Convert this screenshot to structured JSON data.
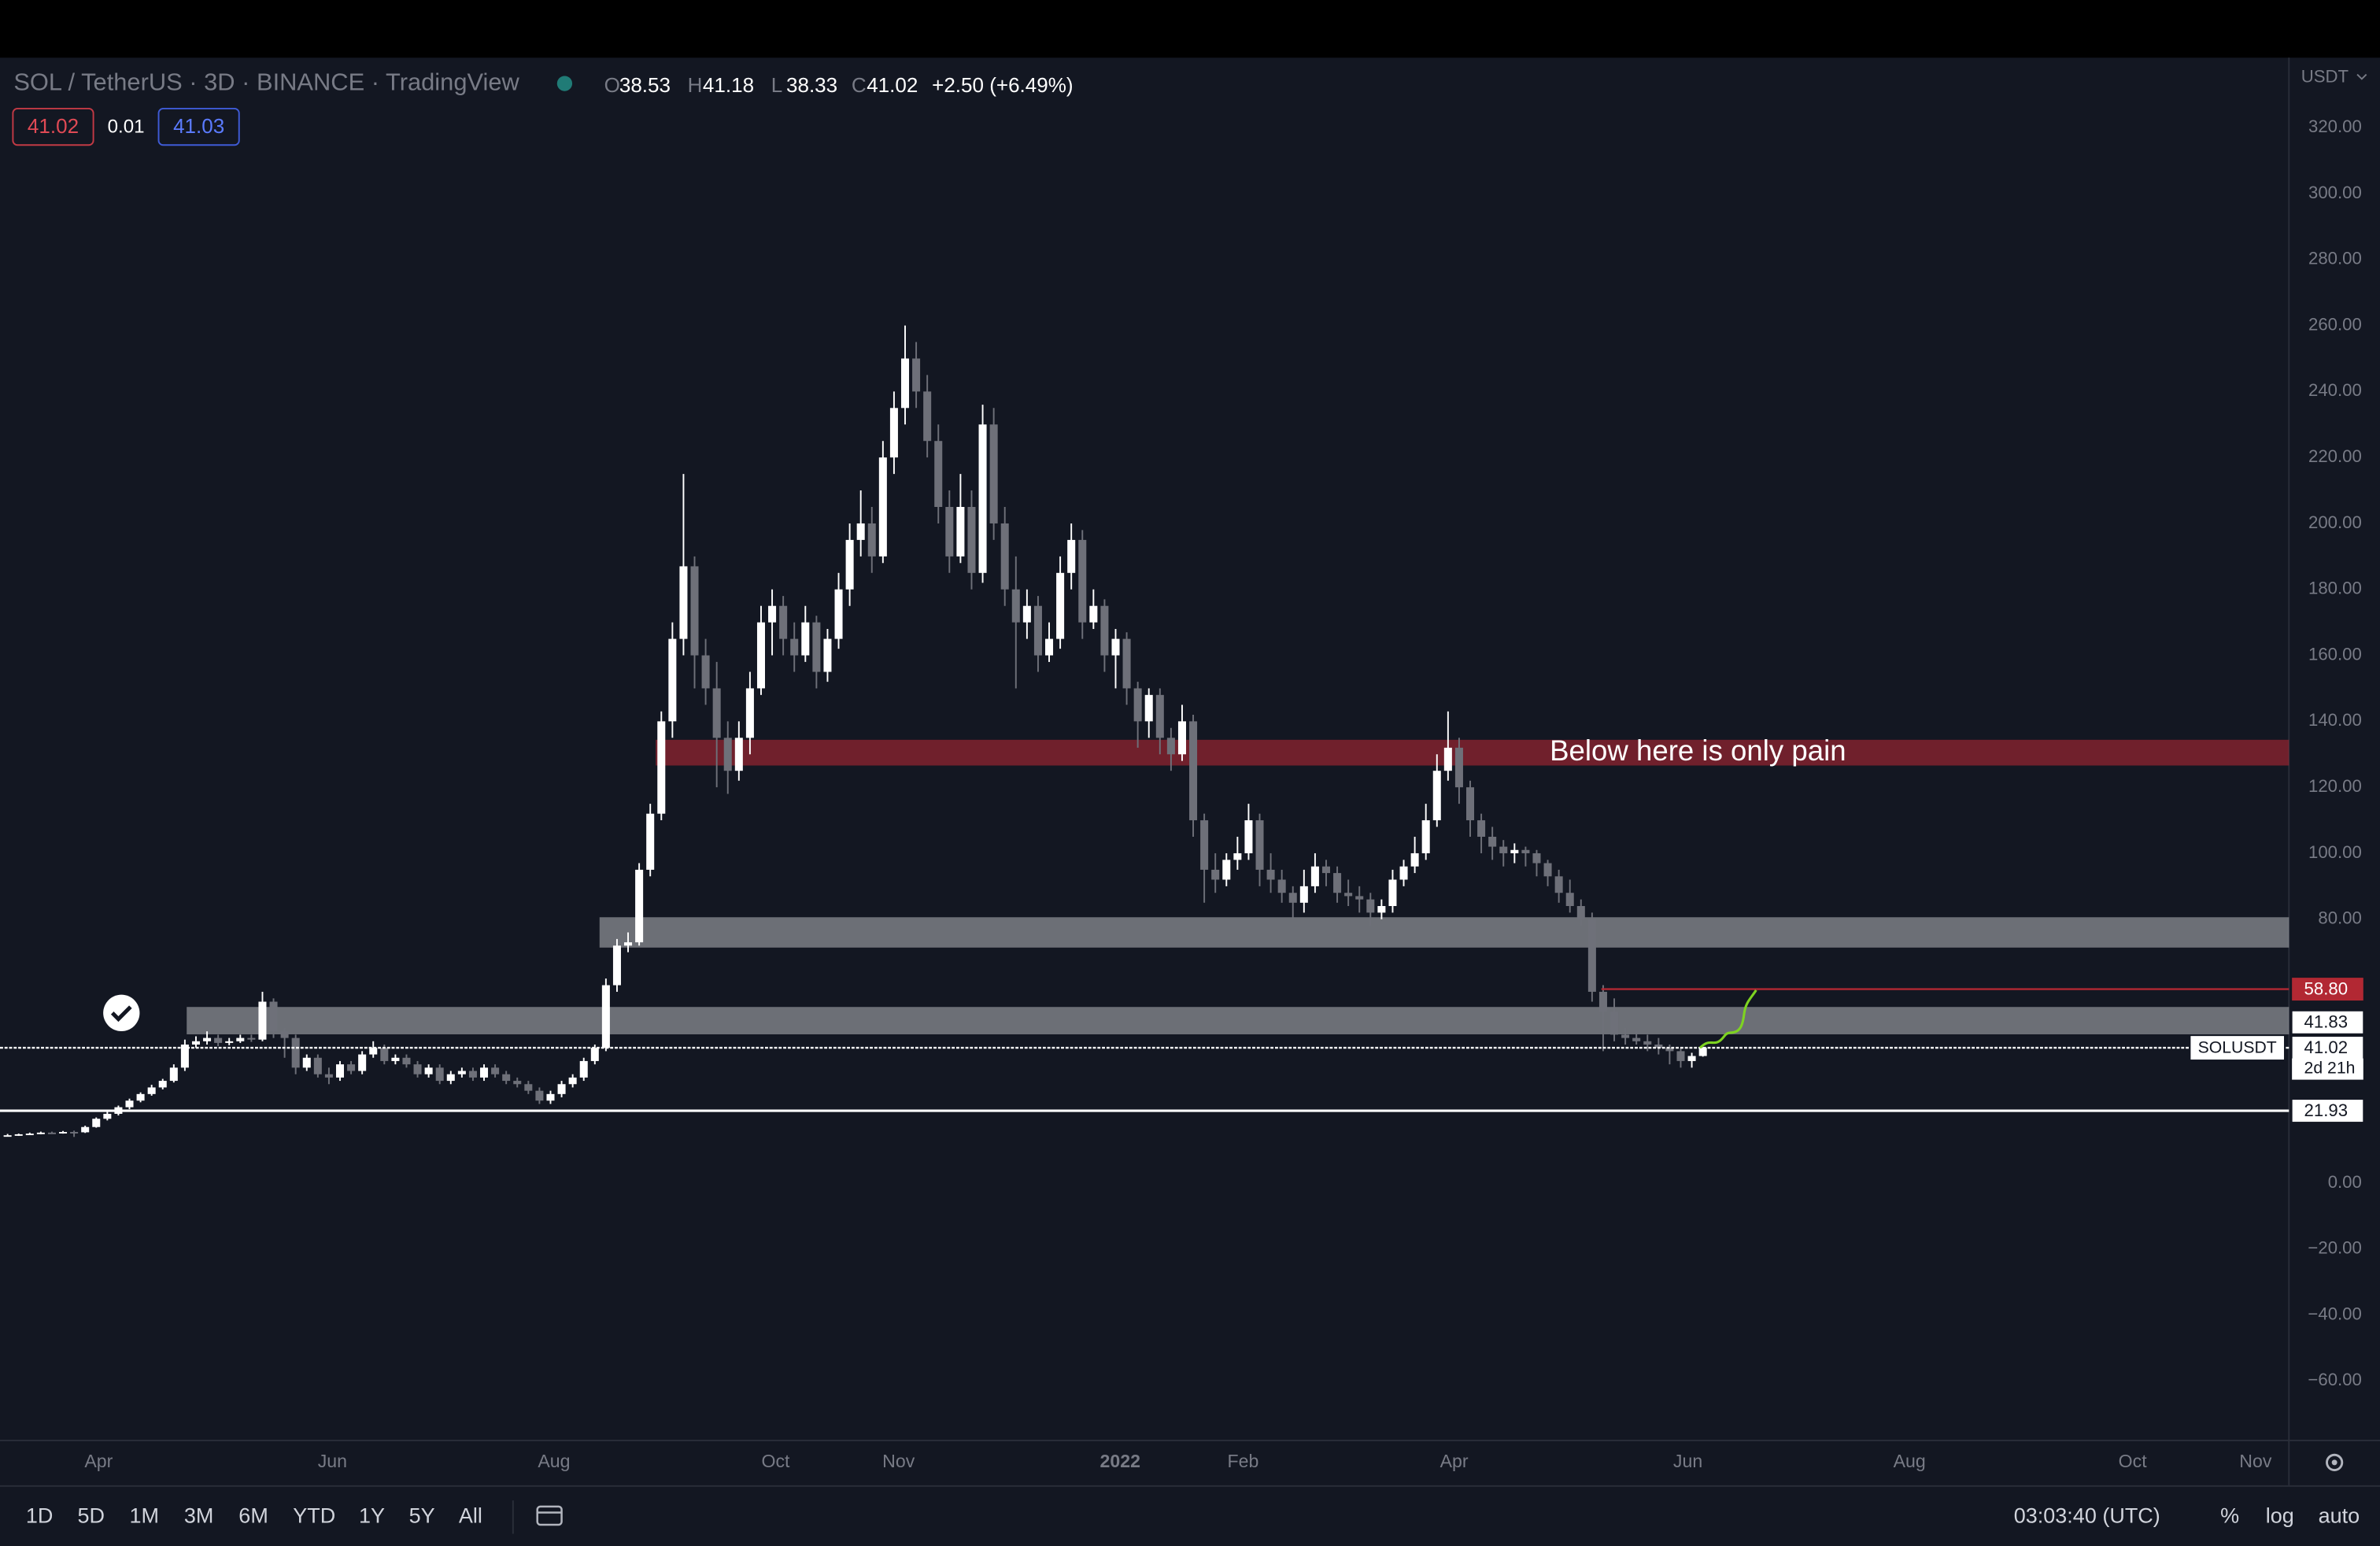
{
  "chart_data": {
    "type": "candlestick",
    "title": "SOL / TetherUS · 3D · BINANCE · TradingView",
    "ohlc_legend": [
      {
        "key": "O",
        "value": "38.53"
      },
      {
        "key": "H",
        "value": "41.18"
      },
      {
        "key": "L",
        "value": "38.33"
      },
      {
        "key": "C",
        "value": "41.02"
      }
    ],
    "change": "+2.50 (+6.49%)",
    "quote": {
      "bid": "41.02",
      "spread": "0.01",
      "ask": "41.03"
    },
    "currency": "USDT",
    "up_color": "#ffffff",
    "down_color": "#6e7079",
    "candles": [
      [
        14.3,
        14.9,
        14.1,
        14.5
      ],
      [
        14.5,
        15.0,
        14.3,
        14.8
      ],
      [
        14.8,
        15.3,
        14.6,
        15.0
      ],
      [
        15.0,
        15.6,
        14.8,
        15.3
      ],
      [
        15.3,
        15.6,
        14.9,
        15.2
      ],
      [
        15.2,
        15.8,
        15.0,
        15.5
      ],
      [
        15.5,
        15.9,
        14.0,
        15.4
      ],
      [
        15.4,
        17.4,
        15.2,
        17
      ],
      [
        17,
        19.9,
        16.8,
        19.5
      ],
      [
        19.5,
        21.6,
        19,
        21
      ],
      [
        21,
        23.5,
        20.5,
        23
      ],
      [
        23,
        25.6,
        22.4,
        25
      ],
      [
        25,
        27.5,
        24.5,
        27
      ],
      [
        27,
        29.8,
        26.5,
        29
      ],
      [
        29,
        31.6,
        28.4,
        31
      ],
      [
        31,
        36,
        30.5,
        35
      ],
      [
        35,
        43.5,
        34,
        42
      ],
      [
        42,
        44.5,
        41,
        43
      ],
      [
        43,
        46,
        42,
        44
      ],
      [
        44,
        45,
        41.5,
        42.5
      ],
      [
        42.5,
        44,
        41.8,
        43
      ],
      [
        43,
        45,
        42.5,
        44
      ],
      [
        44,
        45,
        42.8,
        43.5
      ],
      [
        43.5,
        58,
        43,
        55
      ],
      [
        55,
        56,
        44,
        46
      ],
      [
        46,
        47,
        38,
        44
      ],
      [
        44,
        45,
        33,
        35
      ],
      [
        35,
        39,
        34,
        38
      ],
      [
        38,
        39,
        32,
        33
      ],
      [
        33,
        35,
        30,
        32
      ],
      [
        32,
        37,
        31,
        36
      ],
      [
        36,
        37,
        33,
        34
      ],
      [
        34,
        40,
        33,
        39
      ],
      [
        39,
        43,
        38,
        41
      ],
      [
        41,
        42,
        36,
        37
      ],
      [
        37,
        39,
        36,
        38
      ],
      [
        38,
        39,
        35,
        36
      ],
      [
        36,
        37,
        32,
        33
      ],
      [
        33,
        36,
        32,
        35
      ],
      [
        35,
        36,
        30,
        31
      ],
      [
        31,
        34,
        30,
        33
      ],
      [
        33,
        35,
        32,
        34
      ],
      [
        34,
        35,
        31,
        32
      ],
      [
        32,
        36,
        31,
        35
      ],
      [
        35,
        36,
        32,
        33
      ],
      [
        33,
        34,
        30,
        31
      ],
      [
        31,
        32,
        29,
        30
      ],
      [
        30,
        31,
        27,
        28
      ],
      [
        28,
        29,
        24,
        25
      ],
      [
        25,
        28,
        24,
        27
      ],
      [
        27,
        31,
        26,
        30
      ],
      [
        30,
        33,
        29,
        32
      ],
      [
        32,
        38,
        31,
        37
      ],
      [
        37,
        42,
        36,
        41
      ],
      [
        41,
        62,
        40,
        60
      ],
      [
        60,
        74,
        58,
        72
      ],
      [
        72,
        76,
        70,
        73
      ],
      [
        73,
        97,
        72,
        95
      ],
      [
        95,
        115,
        93,
        112
      ],
      [
        112,
        143,
        110,
        140
      ],
      [
        140,
        170,
        135,
        165
      ],
      [
        165,
        215,
        160,
        187
      ],
      [
        187,
        190,
        150,
        160
      ],
      [
        160,
        165,
        145,
        150
      ],
      [
        150,
        158,
        120,
        135
      ],
      [
        135,
        140,
        118,
        125
      ],
      [
        125,
        140,
        122,
        135
      ],
      [
        135,
        155,
        130,
        150
      ],
      [
        150,
        175,
        148,
        170
      ],
      [
        170,
        180,
        160,
        175
      ],
      [
        175,
        178,
        160,
        165
      ],
      [
        165,
        170,
        155,
        160
      ],
      [
        160,
        175,
        158,
        170
      ],
      [
        170,
        172,
        150,
        155
      ],
      [
        155,
        168,
        152,
        165
      ],
      [
        165,
        185,
        162,
        180
      ],
      [
        180,
        200,
        175,
        195
      ],
      [
        195,
        210,
        190,
        200
      ],
      [
        200,
        205,
        185,
        190
      ],
      [
        190,
        225,
        188,
        220
      ],
      [
        220,
        240,
        215,
        235
      ],
      [
        235,
        260,
        230,
        250
      ],
      [
        250,
        255,
        235,
        240
      ],
      [
        240,
        245,
        220,
        225
      ],
      [
        225,
        230,
        200,
        205
      ],
      [
        205,
        210,
        185,
        190
      ],
      [
        190,
        215,
        188,
        205
      ],
      [
        205,
        210,
        180,
        185
      ],
      [
        185,
        236,
        182,
        230
      ],
      [
        230,
        235,
        195,
        200
      ],
      [
        200,
        205,
        175,
        180
      ],
      [
        180,
        190,
        150,
        170
      ],
      [
        170,
        180,
        165,
        175
      ],
      [
        175,
        178,
        155,
        160
      ],
      [
        160,
        170,
        158,
        165
      ],
      [
        165,
        190,
        162,
        185
      ],
      [
        185,
        200,
        180,
        195
      ],
      [
        195,
        198,
        165,
        170
      ],
      [
        170,
        180,
        168,
        175
      ],
      [
        175,
        177,
        155,
        160
      ],
      [
        160,
        168,
        150,
        165
      ],
      [
        165,
        167,
        145,
        150
      ],
      [
        150,
        152,
        132,
        140
      ],
      [
        140,
        150,
        135,
        148
      ],
      [
        148,
        150,
        130,
        135
      ],
      [
        135,
        138,
        125,
        130
      ],
      [
        130,
        145,
        128,
        140
      ],
      [
        140,
        142,
        105,
        110
      ],
      [
        110,
        112,
        85,
        95
      ],
      [
        95,
        100,
        88,
        92
      ],
      [
        92,
        100,
        90,
        98
      ],
      [
        98,
        105,
        95,
        100
      ],
      [
        100,
        115,
        98,
        110
      ],
      [
        110,
        112,
        90,
        95
      ],
      [
        95,
        100,
        88,
        92
      ],
      [
        92,
        95,
        85,
        88
      ],
      [
        88,
        90,
        80,
        85
      ],
      [
        85,
        95,
        82,
        90
      ],
      [
        90,
        100,
        88,
        96
      ],
      [
        96,
        98,
        90,
        94
      ],
      [
        94,
        96,
        85,
        88
      ],
      [
        88,
        92,
        84,
        87
      ],
      [
        87,
        90,
        82,
        86
      ],
      [
        86,
        88,
        78,
        82
      ],
      [
        82,
        86,
        80,
        84
      ],
      [
        84,
        95,
        82,
        92
      ],
      [
        92,
        98,
        90,
        96
      ],
      [
        96,
        105,
        94,
        100
      ],
      [
        100,
        115,
        98,
        110
      ],
      [
        110,
        130,
        108,
        125
      ],
      [
        125,
        143,
        122,
        132
      ],
      [
        132,
        135,
        115,
        120
      ],
      [
        120,
        122,
        105,
        110
      ],
      [
        110,
        112,
        100,
        105
      ],
      [
        105,
        108,
        98,
        102
      ],
      [
        102,
        104,
        96,
        100
      ],
      [
        100,
        103,
        97,
        101
      ],
      [
        101,
        102,
        96,
        100
      ],
      [
        100,
        101,
        93,
        97
      ],
      [
        97,
        98,
        90,
        93
      ],
      [
        93,
        95,
        85,
        88
      ],
      [
        88,
        92,
        82,
        84
      ],
      [
        84,
        86,
        78,
        80
      ],
      [
        80,
        82,
        55,
        58
      ],
      [
        58,
        60,
        40,
        52
      ],
      [
        52,
        56,
        43,
        45
      ],
      [
        45,
        47,
        42,
        44
      ],
      [
        44,
        46,
        42,
        43
      ],
      [
        43,
        45,
        40,
        42
      ],
      [
        42,
        44,
        39,
        41
      ],
      [
        41,
        42,
        36,
        40
      ],
      [
        40,
        41,
        35,
        37
      ],
      [
        37,
        39.5,
        35,
        38.53
      ],
      [
        38.53,
        41.18,
        38.33,
        41.02
      ]
    ],
    "x_tick_labels": [
      "Apr",
      "Jun",
      "Aug",
      "Oct",
      "Nov",
      "2022",
      "Feb",
      "Apr",
      "Jun",
      "Aug",
      "Oct",
      "Nov"
    ],
    "ylim": [
      -77.8,
      341.2
    ],
    "yticks": [
      {
        "value": 320,
        "label": "320.00"
      },
      {
        "value": 300,
        "label": "300.00"
      },
      {
        "value": 280,
        "label": "280.00"
      },
      {
        "value": 260,
        "label": "260.00"
      },
      {
        "value": 240,
        "label": "240.00"
      },
      {
        "value": 220,
        "label": "220.00"
      },
      {
        "value": 200,
        "label": "200.00"
      },
      {
        "value": 180,
        "label": "180.00"
      },
      {
        "value": 160,
        "label": "160.00"
      },
      {
        "value": 140,
        "label": "140.00"
      },
      {
        "value": 120,
        "label": "120.00"
      },
      {
        "value": 100,
        "label": "100.00"
      },
      {
        "value": 80,
        "label": "80.00"
      },
      {
        "value": 0,
        "label": "0.00"
      },
      {
        "value": -20,
        "label": "−20.00"
      },
      {
        "value": -40,
        "label": "−40.00"
      },
      {
        "value": -60,
        "label": "−60.00"
      }
    ],
    "zones": [
      {
        "low": 126.6,
        "high": 134.4,
        "color": "rgba(170,38,50,0.62)"
      },
      {
        "low": 71.4,
        "high": 80.6,
        "color": "rgba(255,255,255,0.38)"
      },
      {
        "low": 45.1,
        "high": 53.4,
        "color": "rgba(255,255,255,0.38)"
      }
    ],
    "levels": [
      {
        "value": 58.8,
        "color": "#b22833"
      },
      {
        "value": 21.93,
        "color": "#ffffff"
      },
      {
        "value": 41.02,
        "color": "#ffffff"
      }
    ],
    "price_badges": [
      {
        "value": 58.8,
        "label": "58.80",
        "color": "#b22833"
      },
      {
        "value": 41.83,
        "label": "41.83",
        "color": "#ffffff"
      },
      {
        "value": 41.02,
        "label": "41.02",
        "color": "#ffffff"
      },
      {
        "value": 21.93,
        "label": "21.93",
        "color": "#ffffff"
      }
    ],
    "countdown": "2d 21h",
    "symbol_tag": "SOLUSDT",
    "annotation": "Below here is only pain"
  },
  "toolbar": {
    "ranges": [
      "1D",
      "5D",
      "1M",
      "3M",
      "6M",
      "YTD",
      "1Y",
      "5Y",
      "All"
    ],
    "clock": "03:03:40 (UTC)",
    "percent": "%",
    "log": "log",
    "auto": "auto"
  }
}
